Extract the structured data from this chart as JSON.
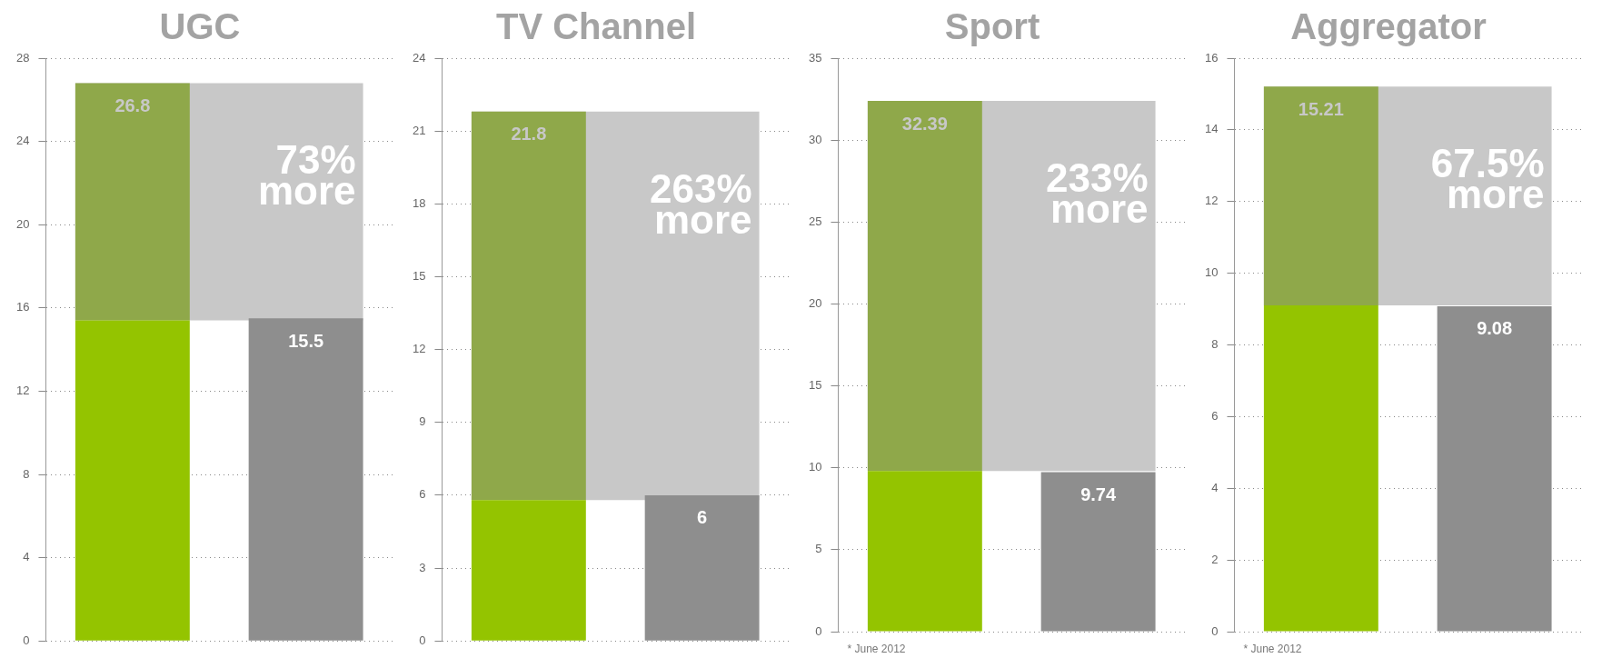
{
  "chart_data": [
    {
      "type": "bar",
      "title": "UGC",
      "categories": [
        null,
        null
      ],
      "stacked": true,
      "legend": false,
      "grid": "y",
      "ylim": [
        0,
        28
      ],
      "yticks": [
        0,
        4,
        8,
        12,
        16,
        20,
        24,
        28
      ],
      "series": [
        {
          "color": "#94c400",
          "values": [
            15.4,
            null
          ]
        },
        {
          "color": "#8fa84a",
          "values": [
            11.4,
            null
          ]
        },
        {
          "color": "#8e8e8e",
          "values": [
            null,
            15.5
          ],
          "value_labels": [
            null,
            "15.5"
          ]
        }
      ],
      "totals": [
        "26.8",
        null
      ],
      "bands": [
        {
          "axis": "y",
          "from": 15.4,
          "to": 26.8,
          "label": "73% more",
          "color": "#c8c8c8"
        }
      ]
    },
    {
      "type": "bar",
      "title": "TV Channel",
      "categories": [
        null,
        null
      ],
      "stacked": true,
      "legend": false,
      "grid": "y",
      "ylim": [
        0,
        24
      ],
      "yticks": [
        0,
        3,
        6,
        9,
        12,
        15,
        18,
        21,
        24
      ],
      "series": [
        {
          "color": "#94c400",
          "values": [
            5.8,
            null
          ]
        },
        {
          "color": "#8fa84a",
          "values": [
            16.0,
            null
          ]
        },
        {
          "color": "#8e8e8e",
          "values": [
            null,
            6
          ],
          "value_labels": [
            null,
            "6"
          ]
        }
      ],
      "totals": [
        "21.8",
        null
      ],
      "bands": [
        {
          "axis": "y",
          "from": 5.8,
          "to": 21.8,
          "label": "263% more",
          "color": "#c8c8c8"
        }
      ]
    },
    {
      "type": "bar",
      "title": "Sport",
      "categories": [
        null,
        null
      ],
      "stacked": true,
      "legend": false,
      "grid": "y",
      "ylim": [
        0,
        35
      ],
      "yticks": [
        0,
        5,
        10,
        15,
        20,
        25,
        30,
        35
      ],
      "series": [
        {
          "color": "#94c400",
          "values": [
            9.8,
            null
          ]
        },
        {
          "color": "#8fa84a",
          "values": [
            22.59,
            null
          ]
        },
        {
          "color": "#8e8e8e",
          "values": [
            null,
            9.74
          ],
          "value_labels": [
            null,
            "9.74"
          ]
        }
      ],
      "totals": [
        "32.39",
        null
      ],
      "bands": [
        {
          "axis": "y",
          "from": 9.8,
          "to": 32.39,
          "label": "233% more",
          "color": "#c8c8c8"
        }
      ],
      "annotations": [
        "* June 2012"
      ]
    },
    {
      "type": "bar",
      "title": "Aggregator",
      "categories": [
        null,
        null
      ],
      "stacked": true,
      "legend": false,
      "grid": "y",
      "ylim": [
        0,
        16
      ],
      "yticks": [
        0,
        2,
        4,
        6,
        8,
        10,
        12,
        14,
        16
      ],
      "series": [
        {
          "color": "#94c400",
          "values": [
            9.1,
            null
          ]
        },
        {
          "color": "#8fa84a",
          "values": [
            6.11,
            null
          ]
        },
        {
          "color": "#8e8e8e",
          "values": [
            null,
            9.08
          ],
          "value_labels": [
            null,
            "9.08"
          ]
        }
      ],
      "totals": [
        "15.21",
        null
      ],
      "bands": [
        {
          "axis": "y",
          "from": 9.1,
          "to": 15.21,
          "label": "67.5% more",
          "color": "#c8c8c8"
        }
      ],
      "annotations": [
        "* June 2012"
      ]
    }
  ]
}
